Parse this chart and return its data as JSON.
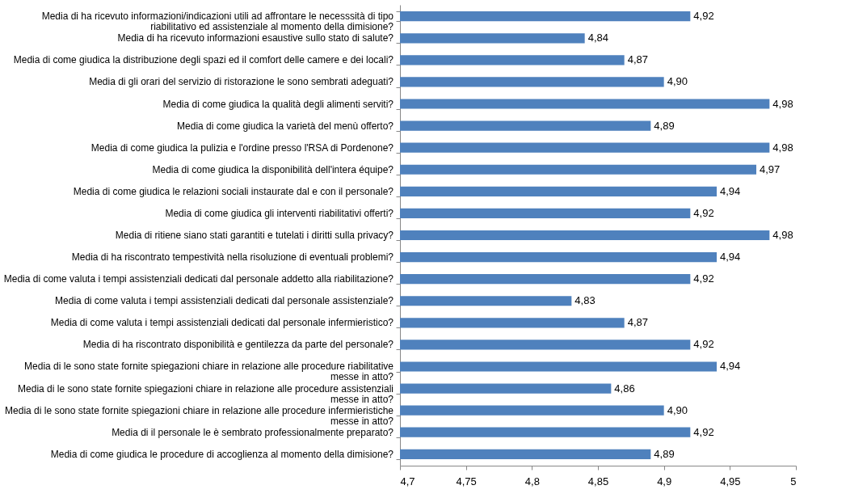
{
  "chart_data": {
    "type": "bar",
    "orientation": "horizontal",
    "categories": [
      "Media di ha ricevuto informazioni/indicazioni utili ad affrontare le necesssità di tipo riabilitativo ed assistenziale al momento della dimisione?",
      "Media di ha ricevuto informazioni esaustive sullo stato di salute?",
      "Media di come giudica la distribuzione degli spazi ed il comfort delle camere e dei locali?",
      "Media di gli orari del servizio di ristorazione le sono sembrati adeguati?",
      "Media di come giudica la qualità degli alimenti serviti?",
      "Media di come giudica la varietà del menù offerto?",
      "Media di come giudica la pulizia e l'ordine presso l'RSA di Pordenone?",
      "Media di come giudica la disponibilità dell'intera équipe?",
      "Media di come giudica le relazioni sociali instaurate dal e con il personale?",
      "Media di come giudica gli interventi riabilitativi offerti?",
      "Media di ritiene siano stati garantiti e tutelati i diritti sulla privacy?",
      "Media di ha riscontrato tempestività nella risoluzione di eventuali problemi?",
      "Media di come valuta i tempi assistenziali dedicati dal personale addetto alla riabilitazione?",
      "Media di come valuta i tempi assistenziali dedicati dal personale assistenziale?",
      "Media di come valuta i tempi assistenziali dedicati dal personale infermieristico?",
      "Media di ha riscontrato disponibilità e gentilezza da parte del personale?",
      "Media di le sono state fornite spiegazioni chiare in relazione alle procedure riabilitative messe in atto?",
      "Media di le sono state fornite spiegazioni chiare in relazione alle procedure assistenziali messe in atto?",
      "Media di le sono state fornite spiegazioni chiare in relazione alle procedure infermieristiche messe in atto?",
      "Media di il personale le è sembrato professionalmente preparato?",
      "Media di come giudica le procedure di accoglienza al momento della dimisione?"
    ],
    "values": [
      4.92,
      4.84,
      4.87,
      4.9,
      4.98,
      4.89,
      4.98,
      4.97,
      4.94,
      4.92,
      4.98,
      4.94,
      4.92,
      4.83,
      4.87,
      4.92,
      4.94,
      4.86,
      4.9,
      4.92,
      4.89
    ],
    "value_labels": [
      "4,92",
      "4,84",
      "4,87",
      "4,90",
      "4,98",
      "4,89",
      "4,98",
      "4,97",
      "4,94",
      "4,92",
      "4,98",
      "4,94",
      "4,92",
      "4,83",
      "4,87",
      "4,92",
      "4,94",
      "4,86",
      "4,90",
      "4,92",
      "4,89"
    ],
    "color": "#4f81bd",
    "xlim": [
      4.7,
      5
    ],
    "xticks": [
      {
        "value": 4.7,
        "label": "4,7"
      },
      {
        "value": 4.75,
        "label": "4,75"
      },
      {
        "value": 4.8,
        "label": "4,8"
      },
      {
        "value": 4.85,
        "label": "4,85"
      },
      {
        "value": 4.9,
        "label": "4,9"
      },
      {
        "value": 4.95,
        "label": "4,95"
      },
      {
        "value": 5,
        "label": "5"
      }
    ],
    "grid": false
  }
}
